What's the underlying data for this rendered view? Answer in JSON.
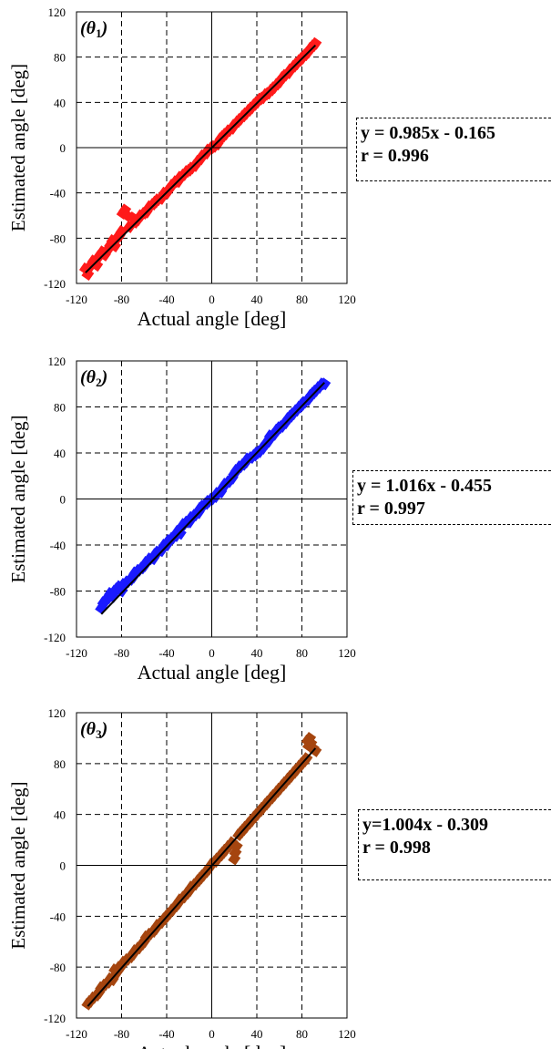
{
  "chart_data": [
    {
      "type": "scatter",
      "panel_label": {
        "pre": "(",
        "var": "θ",
        "sub": "1",
        "post": ")"
      },
      "xlabel": "Actual angle [deg]",
      "ylabel": "Estimated angle [deg]",
      "xlim": [
        -120,
        120
      ],
      "ylim": [
        -120,
        120
      ],
      "xticks": [
        "-120",
        "-80",
        "-40",
        "0",
        "40",
        "80",
        "120"
      ],
      "yticks": [
        "-120",
        "-80",
        "-40",
        "0",
        "40",
        "80",
        "120"
      ],
      "grid": "dashed",
      "point_color": "#ff1a1a",
      "fit": {
        "slope": 0.985,
        "intercept": -0.165,
        "x_range": [
          -112,
          92
        ]
      },
      "equation": "y = 0.985x - 0.165",
      "r_text": "r = 0.996",
      "points": [
        [
          -112,
          -107
        ],
        [
          -110,
          -112
        ],
        [
          -108,
          -105
        ],
        [
          -105,
          -100
        ],
        [
          -102,
          -104
        ],
        [
          -100,
          -96
        ],
        [
          -97,
          -92
        ],
        [
          -95,
          -95
        ],
        [
          -92,
          -90
        ],
        [
          -90,
          -86
        ],
        [
          -88,
          -82
        ],
        [
          -86,
          -87
        ],
        [
          -84,
          -80
        ],
        [
          -82,
          -78
        ],
        [
          -80,
          -74
        ],
        [
          -79,
          -58
        ],
        [
          -77,
          -55
        ],
        [
          -75,
          -60
        ],
        [
          -73,
          -70
        ],
        [
          -70,
          -62
        ],
        [
          -68,
          -66
        ],
        [
          -66,
          -64
        ],
        [
          -63,
          -60
        ],
        [
          -60,
          -58
        ],
        [
          -58,
          -57
        ],
        [
          -55,
          -52
        ],
        [
          -52,
          -50
        ],
        [
          -50,
          -48
        ],
        [
          -48,
          -46
        ],
        [
          -45,
          -45
        ],
        [
          -42,
          -40
        ],
        [
          -40,
          -40
        ],
        [
          -38,
          -37
        ],
        [
          -35,
          -33
        ],
        [
          -32,
          -30
        ],
        [
          -30,
          -30
        ],
        [
          -28,
          -26
        ],
        [
          -25,
          -24
        ],
        [
          -22,
          -21
        ],
        [
          -20,
          -20
        ],
        [
          -18,
          -18
        ],
        [
          -15,
          -16
        ],
        [
          -12,
          -12
        ],
        [
          -10,
          -10
        ],
        [
          -8,
          -7
        ],
        [
          -5,
          -5
        ],
        [
          -3,
          -2
        ],
        [
          0,
          0
        ],
        [
          2,
          1
        ],
        [
          5,
          3
        ],
        [
          8,
          8
        ],
        [
          10,
          10
        ],
        [
          12,
          12
        ],
        [
          15,
          15
        ],
        [
          18,
          17
        ],
        [
          20,
          20
        ],
        [
          23,
          23
        ],
        [
          25,
          25
        ],
        [
          28,
          28
        ],
        [
          30,
          30
        ],
        [
          33,
          33
        ],
        [
          35,
          35
        ],
        [
          38,
          38
        ],
        [
          40,
          40
        ],
        [
          43,
          43
        ],
        [
          45,
          44
        ],
        [
          48,
          47
        ],
        [
          50,
          48
        ],
        [
          53,
          51
        ],
        [
          55,
          53
        ],
        [
          58,
          56
        ],
        [
          60,
          58
        ],
        [
          63,
          62
        ],
        [
          65,
          64
        ],
        [
          68,
          66
        ],
        [
          70,
          69
        ],
        [
          73,
          72
        ],
        [
          75,
          74
        ],
        [
          78,
          77
        ],
        [
          80,
          79
        ],
        [
          83,
          82
        ],
        [
          85,
          84
        ],
        [
          88,
          88
        ],
        [
          90,
          90
        ],
        [
          92,
          92
        ]
      ]
    },
    {
      "type": "scatter",
      "panel_label": {
        "pre": "(",
        "var": "θ",
        "sub": "2",
        "post": ")"
      },
      "xlabel": "Actual angle [deg]",
      "ylabel": "Estimated angle [deg]",
      "xlim": [
        -120,
        120
      ],
      "ylim": [
        -120,
        120
      ],
      "xticks": [
        "-120",
        "-80",
        "-40",
        "0",
        "40",
        "80",
        "120"
      ],
      "yticks": [
        "-120",
        "-80",
        "-40",
        "0",
        "40",
        "80",
        "120"
      ],
      "grid": "dashed",
      "point_color": "#1a1aff",
      "fit": {
        "slope": 1.016,
        "intercept": -0.455,
        "x_range": [
          -98,
          100
        ]
      },
      "equation": "y = 1.016x - 0.455",
      "r_text": "r = 0.997",
      "points": [
        [
          -98,
          -95
        ],
        [
          -96,
          -90
        ],
        [
          -94,
          -88
        ],
        [
          -92,
          -86
        ],
        [
          -90,
          -82
        ],
        [
          -88,
          -85
        ],
        [
          -86,
          -80
        ],
        [
          -84,
          -78
        ],
        [
          -82,
          -76
        ],
        [
          -80,
          -80
        ],
        [
          -78,
          -74
        ],
        [
          -75,
          -72
        ],
        [
          -72,
          -70
        ],
        [
          -70,
          -68
        ],
        [
          -68,
          -64
        ],
        [
          -65,
          -62
        ],
        [
          -62,
          -60
        ],
        [
          -60,
          -58
        ],
        [
          -58,
          -55
        ],
        [
          -55,
          -52
        ],
        [
          -52,
          -52
        ],
        [
          -50,
          -48
        ],
        [
          -48,
          -46
        ],
        [
          -45,
          -45
        ],
        [
          -42,
          -40
        ],
        [
          -40,
          -40
        ],
        [
          -38,
          -36
        ],
        [
          -35,
          -34
        ],
        [
          -32,
          -32
        ],
        [
          -30,
          -28
        ],
        [
          -28,
          -30
        ],
        [
          -25,
          -22
        ],
        [
          -22,
          -20
        ],
        [
          -20,
          -20
        ],
        [
          -18,
          -16
        ],
        [
          -15,
          -14
        ],
        [
          -12,
          -12
        ],
        [
          -10,
          -8
        ],
        [
          -8,
          -6
        ],
        [
          -5,
          -4
        ],
        [
          -3,
          -2
        ],
        [
          0,
          0
        ],
        [
          3,
          2
        ],
        [
          5,
          5
        ],
        [
          8,
          6
        ],
        [
          10,
          10
        ],
        [
          12,
          13
        ],
        [
          15,
          15
        ],
        [
          18,
          18
        ],
        [
          20,
          22
        ],
        [
          22,
          25
        ],
        [
          25,
          28
        ],
        [
          28,
          30
        ],
        [
          30,
          32
        ],
        [
          32,
          35
        ],
        [
          35,
          36
        ],
        [
          38,
          38
        ],
        [
          40,
          40
        ],
        [
          42,
          41
        ],
        [
          45,
          44
        ],
        [
          48,
          48
        ],
        [
          50,
          50
        ],
        [
          52,
          55
        ],
        [
          55,
          56
        ],
        [
          58,
          60
        ],
        [
          60,
          62
        ],
        [
          62,
          63
        ],
        [
          65,
          66
        ],
        [
          68,
          70
        ],
        [
          70,
          72
        ],
        [
          72,
          74
        ],
        [
          75,
          77
        ],
        [
          78,
          80
        ],
        [
          80,
          82
        ],
        [
          82,
          84
        ],
        [
          85,
          86
        ],
        [
          88,
          90
        ],
        [
          90,
          92
        ],
        [
          92,
          94
        ],
        [
          95,
          97
        ],
        [
          98,
          100
        ],
        [
          100,
          100
        ]
      ]
    },
    {
      "type": "scatter",
      "panel_label": {
        "pre": "(",
        "var": "θ",
        "sub": "3",
        "post": ")"
      },
      "xlabel": "Actual angle [deg]",
      "ylabel": "Estimated angle [deg]",
      "xlim": [
        -120,
        120
      ],
      "ylim": [
        -120,
        120
      ],
      "xticks": [
        "-120",
        "-80",
        "-40",
        "0",
        "40",
        "80",
        "120"
      ],
      "yticks": [
        "-120",
        "-80",
        "-40",
        "0",
        "40",
        "80",
        "120"
      ],
      "grid": "dashed",
      "point_color": "#a5450f",
      "fit": {
        "slope": 1.004,
        "intercept": -0.309,
        "x_range": [
          -110,
          92
        ]
      },
      "equation": "y=1.004x - 0.309",
      "r_text": "r = 0.998",
      "points": [
        [
          -110,
          -109
        ],
        [
          -108,
          -107
        ],
        [
          -105,
          -104
        ],
        [
          -102,
          -102
        ],
        [
          -100,
          -100
        ],
        [
          -98,
          -96
        ],
        [
          -95,
          -94
        ],
        [
          -92,
          -92
        ],
        [
          -90,
          -89
        ],
        [
          -88,
          -90
        ],
        [
          -86,
          -82
        ],
        [
          -84,
          -84
        ],
        [
          -82,
          -80
        ],
        [
          -80,
          -79
        ],
        [
          -78,
          -76
        ],
        [
          -75,
          -74
        ],
        [
          -72,
          -72
        ],
        [
          -70,
          -70
        ],
        [
          -68,
          -67
        ],
        [
          -65,
          -65
        ],
        [
          -62,
          -62
        ],
        [
          -60,
          -60
        ],
        [
          -58,
          -56
        ],
        [
          -55,
          -54
        ],
        [
          -52,
          -52
        ],
        [
          -50,
          -50
        ],
        [
          -48,
          -47
        ],
        [
          -45,
          -45
        ],
        [
          -42,
          -42
        ],
        [
          -40,
          -40
        ],
        [
          -38,
          -38
        ],
        [
          -35,
          -35
        ],
        [
          -32,
          -32
        ],
        [
          -30,
          -30
        ],
        [
          -28,
          -27
        ],
        [
          -25,
          -25
        ],
        [
          -22,
          -22
        ],
        [
          -20,
          -20
        ],
        [
          -18,
          -17
        ],
        [
          -15,
          -15
        ],
        [
          -12,
          -12
        ],
        [
          -10,
          -10
        ],
        [
          -8,
          -8
        ],
        [
          -5,
          -5
        ],
        [
          -3,
          -3
        ],
        [
          0,
          1
        ],
        [
          3,
          3
        ],
        [
          5,
          5
        ],
        [
          8,
          8
        ],
        [
          10,
          10
        ],
        [
          12,
          12
        ],
        [
          15,
          15
        ],
        [
          18,
          18
        ],
        [
          20,
          5
        ],
        [
          21,
          10
        ],
        [
          22,
          15
        ],
        [
          24,
          24
        ],
        [
          26,
          26
        ],
        [
          28,
          28
        ],
        [
          30,
          30
        ],
        [
          33,
          33
        ],
        [
          35,
          35
        ],
        [
          38,
          38
        ],
        [
          40,
          40
        ],
        [
          43,
          43
        ],
        [
          45,
          45
        ],
        [
          48,
          48
        ],
        [
          50,
          50
        ],
        [
          53,
          53
        ],
        [
          55,
          55
        ],
        [
          58,
          58
        ],
        [
          60,
          60
        ],
        [
          63,
          63
        ],
        [
          65,
          65
        ],
        [
          68,
          68
        ],
        [
          70,
          70
        ],
        [
          73,
          73
        ],
        [
          75,
          75
        ],
        [
          78,
          78
        ],
        [
          80,
          80
        ],
        [
          82,
          82
        ],
        [
          84,
          84
        ],
        [
          85,
          98
        ],
        [
          86,
          94
        ],
        [
          87,
          100
        ],
        [
          88,
          96
        ],
        [
          90,
          92
        ],
        [
          92,
          90
        ]
      ]
    }
  ]
}
